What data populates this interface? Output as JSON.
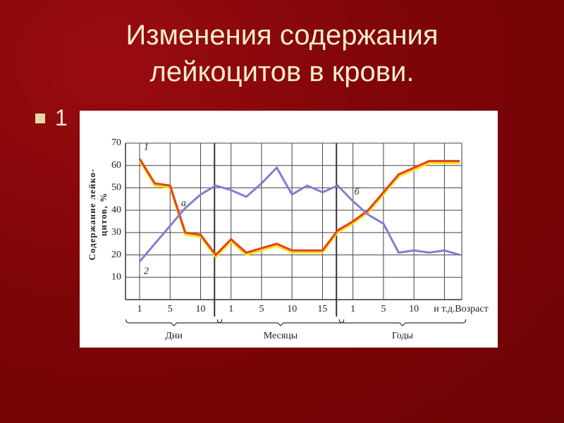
{
  "slide": {
    "title": [
      "Изменения содержания",
      "лейкоцитов в крови."
    ],
    "bullet": "1"
  },
  "chart_data": {
    "type": "line",
    "ylabel": [
      "Содержание лейко-",
      "цитов, %"
    ],
    "xlabel": "Возраст",
    "groups": [
      "Дни",
      "Месяцы",
      "Годы"
    ],
    "categories": [
      "1",
      null,
      "5",
      null,
      "10",
      null,
      "1",
      null,
      "5",
      null,
      "10",
      null,
      "15",
      null,
      "1",
      null,
      "5",
      null,
      "10",
      null,
      "и т.д.",
      null
    ],
    "series": [
      {
        "name": "1",
        "color": "#e8401a",
        "values": [
          63,
          52,
          51,
          30,
          29,
          20,
          27,
          21,
          23,
          25,
          22,
          22,
          22,
          31,
          35,
          40,
          48,
          56,
          59,
          62,
          62,
          62
        ]
      },
      {
        "name": "2",
        "color": "#8a7ad0",
        "values": [
          17,
          25,
          33,
          41,
          47,
          51,
          49,
          46,
          52,
          59,
          47,
          51,
          48,
          51,
          44,
          38,
          34,
          21,
          22,
          21,
          22,
          20
        ]
      }
    ],
    "annotations": [
      "а",
      "б"
    ],
    "ylim": [
      0,
      70
    ],
    "yticks": [
      10,
      20,
      30,
      40,
      50,
      60,
      70
    ],
    "grid": true
  }
}
